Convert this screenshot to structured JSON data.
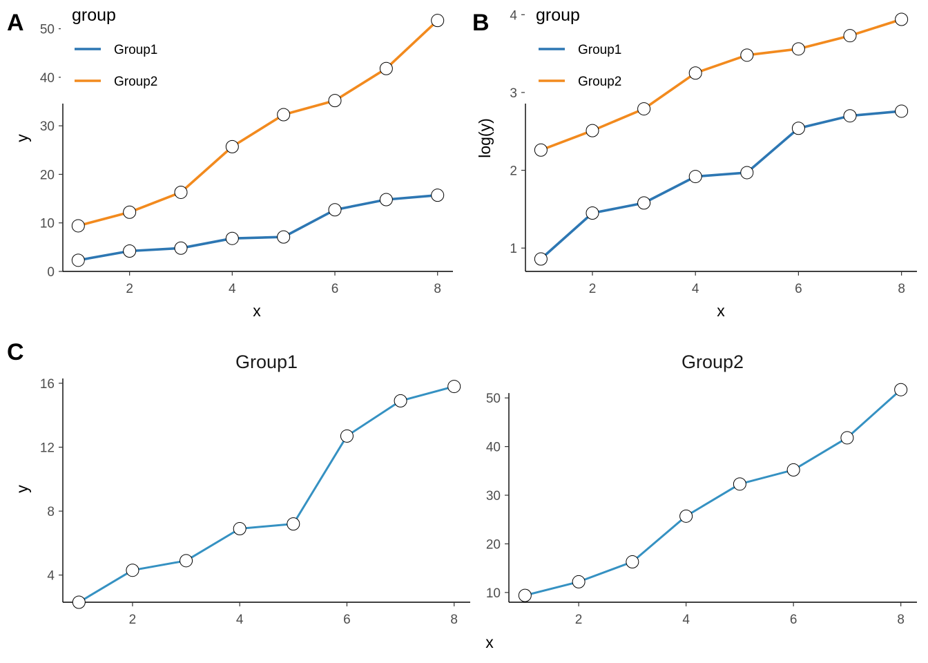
{
  "colors": {
    "group1": "#2d77b3",
    "group2": "#f28a1e",
    "facet_line": "#3591c2",
    "point_fill": "#ffffff",
    "point_stroke": "#000000"
  },
  "chart_data": [
    {
      "id": "A",
      "tag": "A",
      "type": "line",
      "xlabel": "x",
      "ylabel": "y",
      "xlim": [
        0.7,
        8.3
      ],
      "ylim": [
        0,
        54.5
      ],
      "xticks": [
        2,
        4,
        6,
        8
      ],
      "yticks": [
        0,
        10,
        20,
        30,
        40,
        50
      ],
      "x": [
        1,
        2,
        3,
        4,
        5,
        6,
        7,
        8
      ],
      "legend": {
        "title": "group",
        "position": "top-left"
      },
      "series": [
        {
          "name": "Group1",
          "color_key": "group1",
          "values": [
            2.3,
            4.2,
            4.8,
            6.8,
            7.1,
            12.7,
            14.8,
            15.7
          ]
        },
        {
          "name": "Group2",
          "color_key": "group2",
          "values": [
            9.4,
            12.2,
            16.3,
            25.7,
            32.3,
            35.2,
            41.8,
            51.7
          ]
        }
      ]
    },
    {
      "id": "B",
      "tag": "B",
      "type": "line",
      "xlabel": "x",
      "ylabel": "log(y)",
      "xlim": [
        0.7,
        8.3
      ],
      "ylim": [
        0.7,
        4.1
      ],
      "xticks": [
        2,
        4,
        6,
        8
      ],
      "yticks": [
        1,
        2,
        3,
        4
      ],
      "x": [
        1,
        2,
        3,
        4,
        5,
        6,
        7,
        8
      ],
      "legend": {
        "title": "group",
        "position": "top-left"
      },
      "series": [
        {
          "name": "Group1",
          "color_key": "group1",
          "values": [
            0.86,
            1.45,
            1.58,
            1.92,
            1.97,
            2.54,
            2.7,
            2.76
          ]
        },
        {
          "name": "Group2",
          "color_key": "group2",
          "values": [
            2.26,
            2.51,
            2.79,
            3.25,
            3.48,
            3.56,
            3.73,
            3.94
          ]
        }
      ]
    },
    {
      "id": "C1",
      "tag": "C",
      "type": "line",
      "facet_title": "Group1",
      "xlabel": "",
      "ylabel": "y",
      "xlim": [
        0.7,
        8.3
      ],
      "ylim": [
        2.3,
        16.3
      ],
      "xticks": [
        2,
        4,
        6,
        8
      ],
      "yticks": [
        4,
        8,
        12,
        16
      ],
      "x": [
        1,
        2,
        3,
        4,
        5,
        6,
        7,
        8
      ],
      "series": [
        {
          "color_key": "facet_line",
          "values": [
            2.3,
            4.3,
            4.9,
            6.9,
            7.2,
            12.7,
            14.9,
            15.8
          ]
        }
      ]
    },
    {
      "id": "C2",
      "tag": "",
      "type": "line",
      "facet_title": "Group2",
      "xlabel": "",
      "ylabel": "",
      "xlim": [
        0.7,
        8.3
      ],
      "ylim": [
        8,
        54
      ],
      "xticks": [
        2,
        4,
        6,
        8
      ],
      "yticks": [
        10,
        20,
        30,
        40,
        50
      ],
      "x": [
        1,
        2,
        3,
        4,
        5,
        6,
        7,
        8
      ],
      "series": [
        {
          "color_key": "facet_line",
          "values": [
            9.4,
            12.2,
            16.3,
            25.7,
            32.3,
            35.2,
            41.8,
            51.7
          ]
        }
      ]
    }
  ],
  "shared_xlabel": "x"
}
